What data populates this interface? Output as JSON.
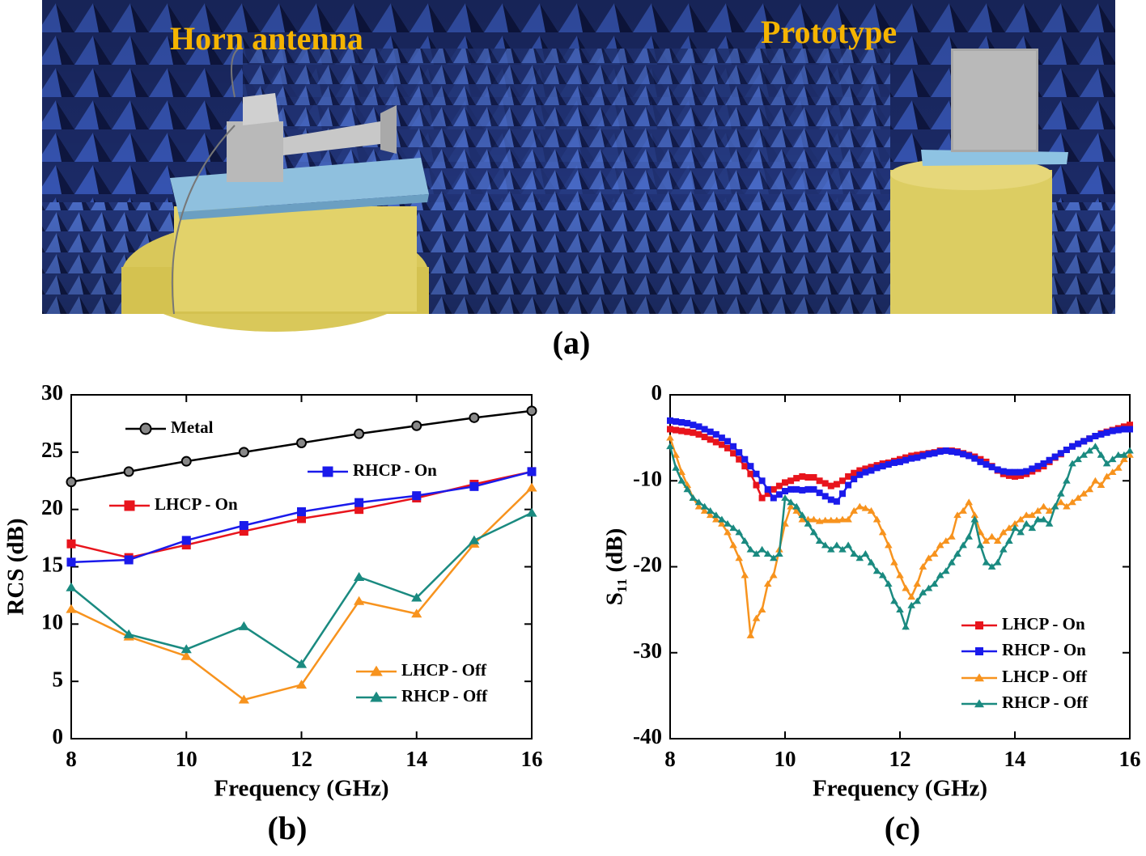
{
  "photo": {
    "labels": [
      "Horn antenna",
      "Prototype"
    ],
    "caption": "(a)"
  },
  "chart_data": [
    {
      "type": "line",
      "caption": "(b)",
      "xlabel": "Frequency (GHz)",
      "ylabel": "RCS (dB)",
      "xlim": [
        8,
        16
      ],
      "xticks": [
        8,
        10,
        12,
        14,
        16
      ],
      "ylim": [
        0,
        30
      ],
      "yticks": [
        0,
        5,
        10,
        15,
        20,
        25,
        30
      ],
      "x": [
        8,
        9,
        10,
        11,
        12,
        13,
        14,
        15,
        16
      ],
      "series": [
        {
          "name": "Metal",
          "color": "#000000",
          "marker": "circle",
          "values": [
            22.4,
            23.3,
            24.2,
            25.0,
            25.8,
            26.6,
            27.3,
            28.0,
            28.6
          ]
        },
        {
          "name": "LHCP - On",
          "color": "#e8141c",
          "marker": "square",
          "values": [
            17.0,
            15.8,
            16.9,
            18.1,
            19.2,
            20.0,
            21.0,
            22.2,
            23.3
          ]
        },
        {
          "name": "RHCP - On",
          "color": "#1a1aeb",
          "marker": "square",
          "values": [
            15.4,
            15.6,
            17.3,
            18.6,
            19.8,
            20.6,
            21.2,
            22.0,
            23.3
          ]
        },
        {
          "name": "LHCP - Off",
          "color": "#f7931e",
          "marker": "triangle",
          "values": [
            11.3,
            8.9,
            7.2,
            3.4,
            4.7,
            12.0,
            10.9,
            17.0,
            21.9
          ]
        },
        {
          "name": "RHCP - Off",
          "color": "#1a8a80",
          "marker": "triangle",
          "values": [
            13.2,
            9.1,
            7.8,
            9.8,
            6.5,
            14.1,
            12.3,
            17.3,
            19.7
          ]
        }
      ]
    },
    {
      "type": "line",
      "caption": "(c)",
      "xlabel": "Frequency (GHz)",
      "ylabel": "S₁₁ (dB)",
      "xlim": [
        8,
        16
      ],
      "xticks": [
        8,
        10,
        12,
        14,
        16
      ],
      "ylim": [
        -40,
        0
      ],
      "yticks": [
        -40,
        -30,
        -20,
        -10,
        0
      ],
      "x": [
        8,
        8.1,
        8.2,
        8.3,
        8.4,
        8.5,
        8.6,
        8.7,
        8.8,
        8.9,
        9,
        9.1,
        9.2,
        9.3,
        9.4,
        9.5,
        9.6,
        9.7,
        9.8,
        9.9,
        10,
        10.1,
        10.2,
        10.3,
        10.4,
        10.5,
        10.6,
        10.7,
        10.8,
        10.9,
        11,
        11.1,
        11.2,
        11.3,
        11.4,
        11.5,
        11.6,
        11.7,
        11.8,
        11.9,
        12,
        12.1,
        12.2,
        12.3,
        12.4,
        12.5,
        12.6,
        12.7,
        12.8,
        12.9,
        13,
        13.1,
        13.2,
        13.3,
        13.4,
        13.5,
        13.6,
        13.7,
        13.8,
        13.9,
        14,
        14.1,
        14.2,
        14.3,
        14.4,
        14.5,
        14.6,
        14.7,
        14.8,
        14.9,
        15,
        15.1,
        15.2,
        15.3,
        15.4,
        15.5,
        15.6,
        15.7,
        15.8,
        15.9,
        16
      ],
      "series": [
        {
          "name": "LHCP - On",
          "color": "#e8141c",
          "marker": "square",
          "values": [
            -4.0,
            -4.1,
            -4.2,
            -4.3,
            -4.4,
            -4.6,
            -4.9,
            -5.2,
            -5.5,
            -5.8,
            -6.2,
            -6.8,
            -7.5,
            -8.3,
            -9.2,
            -10.5,
            -12.0,
            -11.5,
            -11.0,
            -10.6,
            -10.2,
            -10.0,
            -9.7,
            -9.5,
            -9.6,
            -9.6,
            -10.0,
            -10.3,
            -10.6,
            -10.4,
            -10.0,
            -9.5,
            -9.1,
            -8.8,
            -8.6,
            -8.4,
            -8.2,
            -8.0,
            -7.9,
            -7.7,
            -7.5,
            -7.3,
            -7.1,
            -7.0,
            -6.9,
            -6.8,
            -6.7,
            -6.5,
            -6.5,
            -6.5,
            -6.6,
            -6.8,
            -7.0,
            -7.2,
            -7.5,
            -7.8,
            -8.3,
            -8.8,
            -9.2,
            -9.4,
            -9.5,
            -9.4,
            -9.2,
            -8.9,
            -8.6,
            -8.3,
            -7.8,
            -7.3,
            -6.9,
            -6.4,
            -6.0,
            -5.7,
            -5.4,
            -5.1,
            -4.8,
            -4.5,
            -4.3,
            -4.1,
            -3.9,
            -3.7,
            -3.5
          ]
        },
        {
          "name": "RHCP - On",
          "color": "#1a1aeb",
          "marker": "square",
          "values": [
            -3.0,
            -3.1,
            -3.2,
            -3.3,
            -3.5,
            -3.7,
            -4.0,
            -4.3,
            -4.6,
            -5.0,
            -5.4,
            -6.0,
            -6.7,
            -7.5,
            -8.3,
            -9.2,
            -10.0,
            -11.0,
            -12.0,
            -11.6,
            -11.2,
            -11.0,
            -11.0,
            -11.1,
            -11.0,
            -11.0,
            -11.4,
            -11.8,
            -12.2,
            -12.4,
            -11.5,
            -10.5,
            -9.8,
            -9.3,
            -9.0,
            -8.8,
            -8.5,
            -8.3,
            -8.1,
            -7.9,
            -7.8,
            -7.6,
            -7.4,
            -7.3,
            -7.1,
            -6.9,
            -6.8,
            -6.6,
            -6.5,
            -6.6,
            -6.7,
            -6.9,
            -7.1,
            -7.4,
            -7.8,
            -8.1,
            -8.4,
            -8.7,
            -8.9,
            -9.0,
            -9.0,
            -9.0,
            -8.9,
            -8.6,
            -8.3,
            -8.0,
            -7.6,
            -7.2,
            -6.8,
            -6.4,
            -6.0,
            -5.7,
            -5.4,
            -5.1,
            -4.8,
            -4.6,
            -4.4,
            -4.2,
            -4.1,
            -4.0,
            -4.0
          ]
        },
        {
          "name": "LHCP - Off",
          "color": "#f7931e",
          "marker": "triangle",
          "values": [
            -5.0,
            -7.0,
            -9.0,
            -10.5,
            -12.0,
            -13.0,
            -13.5,
            -14.0,
            -14.5,
            -15.0,
            -16.0,
            -17.5,
            -19.0,
            -21.0,
            -28.0,
            -26.0,
            -25.0,
            -22.0,
            -21.0,
            -18.0,
            -15.0,
            -13.0,
            -13.5,
            -14.5,
            -14.5,
            -14.5,
            -14.7,
            -14.6,
            -14.6,
            -14.6,
            -14.5,
            -14.5,
            -13.5,
            -13.0,
            -13.2,
            -13.5,
            -14.5,
            -16.0,
            -17.5,
            -19.5,
            -21.0,
            -22.5,
            -23.5,
            -22.0,
            -20.0,
            -19.0,
            -18.5,
            -17.5,
            -17.0,
            -16.5,
            -14.0,
            -13.5,
            -12.5,
            -14.0,
            -16.0,
            -17.0,
            -16.5,
            -17.0,
            -16.0,
            -15.5,
            -15.0,
            -14.5,
            -14.0,
            -14.0,
            -13.5,
            -13.0,
            -13.5,
            -13.0,
            -12.5,
            -13.0,
            -12.5,
            -12.0,
            -11.5,
            -11.0,
            -10.0,
            -10.5,
            -9.5,
            -9.0,
            -8.5,
            -7.5,
            -7.0
          ]
        },
        {
          "name": "RHCP - Off",
          "color": "#1a8a80",
          "marker": "triangle",
          "values": [
            -6.0,
            -8.5,
            -10.0,
            -11.0,
            -12.0,
            -12.5,
            -13.0,
            -13.5,
            -14.0,
            -14.5,
            -15.0,
            -15.5,
            -16.0,
            -17.0,
            -18.0,
            -18.5,
            -18.0,
            -18.5,
            -19.0,
            -18.5,
            -12.0,
            -12.5,
            -13.0,
            -14.0,
            -15.0,
            -16.0,
            -17.0,
            -17.5,
            -18.0,
            -17.5,
            -18.0,
            -17.5,
            -18.5,
            -19.0,
            -18.5,
            -19.5,
            -20.5,
            -21.0,
            -22.0,
            -24.0,
            -25.0,
            -27.0,
            -24.5,
            -24.0,
            -23.0,
            -22.5,
            -22.0,
            -21.0,
            -20.5,
            -19.5,
            -18.5,
            -17.5,
            -16.5,
            -14.5,
            -17.5,
            -19.5,
            -20.0,
            -19.5,
            -18.0,
            -17.0,
            -15.5,
            -16.0,
            -15.0,
            -15.5,
            -14.5,
            -14.5,
            -15.0,
            -13.0,
            -11.5,
            -10.0,
            -8.0,
            -7.5,
            -7.0,
            -6.5,
            -6.0,
            -7.0,
            -8.0,
            -7.5,
            -7.0,
            -7.0,
            -6.5
          ]
        }
      ]
    }
  ]
}
